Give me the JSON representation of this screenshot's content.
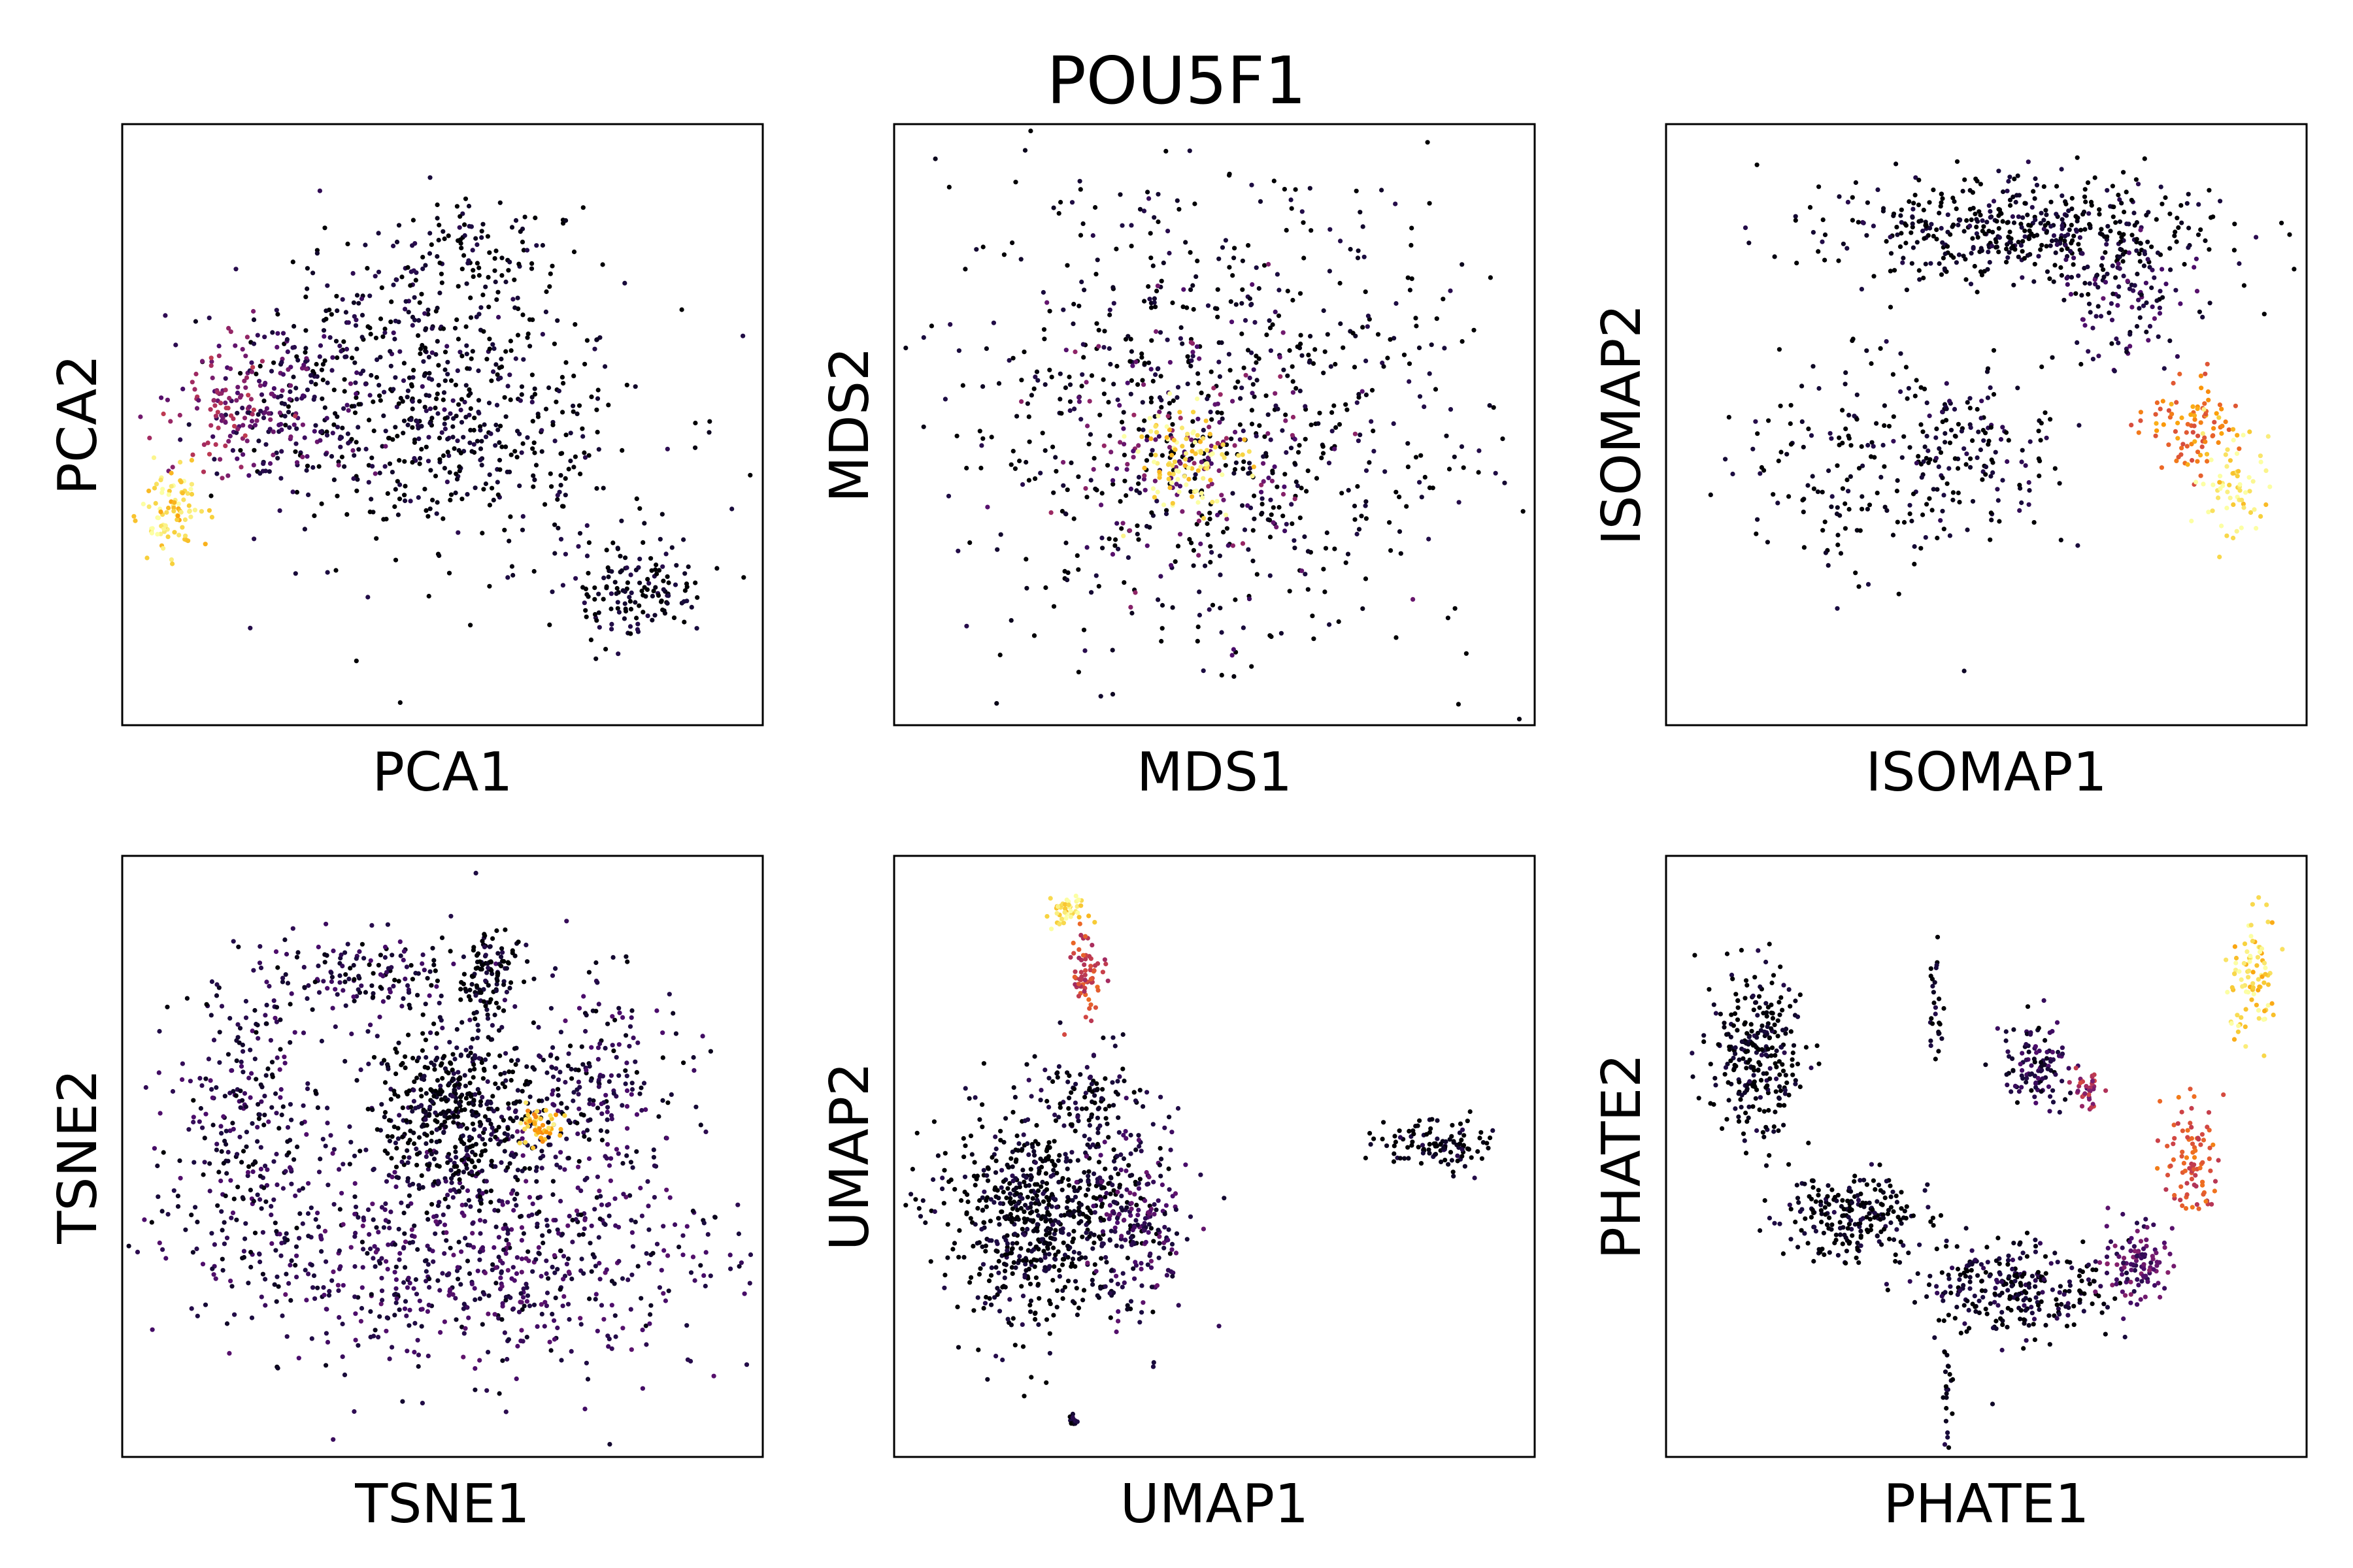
{
  "figure": {
    "title": "POU5F1",
    "colormap": [
      "#000004",
      "#1b0c41",
      "#4a0c6b",
      "#781c6d",
      "#a52c60",
      "#cf4446",
      "#ed6925",
      "#fb9b06",
      "#f7d13d",
      "#fcffa4"
    ]
  },
  "chart_data": [
    {
      "type": "scatter",
      "xlabel": "PCA1",
      "ylabel": "PCA2",
      "grid": false,
      "ticks": false,
      "clusters": [
        {
          "cx": 0.52,
          "cy": 0.48,
          "rx": 0.3,
          "ry": 0.22,
          "n": 900,
          "level": 0.03
        },
        {
          "cx": 0.4,
          "cy": 0.64,
          "rx": 0.2,
          "ry": 0.18,
          "n": 350,
          "level": 0.06
        },
        {
          "cx": 0.24,
          "cy": 0.53,
          "rx": 0.15,
          "ry": 0.14,
          "n": 300,
          "level": 0.22
        },
        {
          "cx": 0.16,
          "cy": 0.53,
          "rx": 0.08,
          "ry": 0.1,
          "n": 150,
          "level": 0.4
        },
        {
          "cx": 0.08,
          "cy": 0.35,
          "rx": 0.05,
          "ry": 0.07,
          "n": 160,
          "level": 0.92
        },
        {
          "cx": 0.8,
          "cy": 0.22,
          "rx": 0.1,
          "ry": 0.09,
          "n": 260,
          "level": 0.02
        },
        {
          "cx": 0.55,
          "cy": 0.78,
          "rx": 0.14,
          "ry": 0.1,
          "n": 180,
          "level": 0.01
        }
      ]
    },
    {
      "type": "scatter",
      "xlabel": "MDS1",
      "ylabel": "MDS2",
      "grid": false,
      "ticks": false,
      "clusters": [
        {
          "cx": 0.5,
          "cy": 0.52,
          "rx": 0.42,
          "ry": 0.4,
          "n": 1400,
          "level": 0.02
        },
        {
          "cx": 0.46,
          "cy": 0.46,
          "rx": 0.22,
          "ry": 0.22,
          "n": 300,
          "level": 0.3
        },
        {
          "cx": 0.46,
          "cy": 0.44,
          "rx": 0.09,
          "ry": 0.09,
          "n": 200,
          "level": 0.95
        }
      ]
    },
    {
      "type": "scatter",
      "xlabel": "ISOMAP1",
      "ylabel": "ISOMAP2",
      "grid": false,
      "ticks": false,
      "clusters": [
        {
          "cx": 0.55,
          "cy": 0.82,
          "rx": 0.3,
          "ry": 0.09,
          "n": 900,
          "level": 0.03
        },
        {
          "cx": 0.72,
          "cy": 0.7,
          "rx": 0.12,
          "ry": 0.1,
          "n": 200,
          "level": 0.15
        },
        {
          "cx": 0.3,
          "cy": 0.45,
          "rx": 0.18,
          "ry": 0.2,
          "n": 300,
          "level": 0.01
        },
        {
          "cx": 0.5,
          "cy": 0.45,
          "rx": 0.12,
          "ry": 0.15,
          "n": 250,
          "level": 0.05
        },
        {
          "cx": 0.82,
          "cy": 0.5,
          "rx": 0.08,
          "ry": 0.08,
          "n": 160,
          "level": 0.7
        },
        {
          "cx": 0.88,
          "cy": 0.4,
          "rx": 0.06,
          "ry": 0.08,
          "n": 120,
          "level": 0.95
        }
      ]
    },
    {
      "type": "scatter",
      "xlabel": "TSNE1",
      "ylabel": "TSNE2",
      "grid": false,
      "ticks": false,
      "clusters": [
        {
          "cx": 0.54,
          "cy": 0.33,
          "rx": 0.4,
          "ry": 0.2,
          "n": 1400,
          "level": 0.15
        },
        {
          "cx": 0.2,
          "cy": 0.55,
          "rx": 0.12,
          "ry": 0.25,
          "n": 500,
          "level": 0.12
        },
        {
          "cx": 0.74,
          "cy": 0.62,
          "rx": 0.12,
          "ry": 0.18,
          "n": 400,
          "level": 0.12
        },
        {
          "cx": 0.38,
          "cy": 0.8,
          "rx": 0.18,
          "ry": 0.08,
          "n": 300,
          "level": 0.1
        },
        {
          "cx": 0.52,
          "cy": 0.57,
          "rx": 0.12,
          "ry": 0.14,
          "n": 900,
          "level": 0.03
        },
        {
          "cx": 0.57,
          "cy": 0.8,
          "rx": 0.04,
          "ry": 0.07,
          "n": 200,
          "level": 0.02
        },
        {
          "cx": 0.65,
          "cy": 0.55,
          "rx": 0.04,
          "ry": 0.03,
          "n": 90,
          "level": 0.85
        }
      ]
    },
    {
      "type": "scatter",
      "xlabel": "UMAP1",
      "ylabel": "UMAP2",
      "grid": false,
      "ticks": false,
      "clusters": [
        {
          "cx": 0.23,
          "cy": 0.4,
          "rx": 0.16,
          "ry": 0.18,
          "n": 1300,
          "level": 0.02
        },
        {
          "cx": 0.38,
          "cy": 0.4,
          "rx": 0.08,
          "ry": 0.16,
          "n": 350,
          "level": 0.18
        },
        {
          "cx": 0.3,
          "cy": 0.6,
          "rx": 0.08,
          "ry": 0.06,
          "n": 150,
          "level": 0.05
        },
        {
          "cx": 0.3,
          "cy": 0.8,
          "rx": 0.03,
          "ry": 0.07,
          "n": 120,
          "level": 0.55
        },
        {
          "cx": 0.27,
          "cy": 0.91,
          "rx": 0.03,
          "ry": 0.03,
          "n": 80,
          "level": 0.95
        },
        {
          "cx": 0.84,
          "cy": 0.52,
          "rx": 0.09,
          "ry": 0.04,
          "n": 200,
          "level": 0.02
        },
        {
          "cx": 0.28,
          "cy": 0.06,
          "rx": 0.01,
          "ry": 0.01,
          "n": 20,
          "level": 0.02
        }
      ]
    },
    {
      "type": "scatter",
      "xlabel": "PHATE1",
      "ylabel": "PHATE2",
      "grid": false,
      "ticks": false,
      "clusters": [
        {
          "cx": 0.14,
          "cy": 0.66,
          "rx": 0.07,
          "ry": 0.14,
          "n": 500,
          "level": 0.02
        },
        {
          "cx": 0.3,
          "cy": 0.4,
          "rx": 0.12,
          "ry": 0.07,
          "n": 400,
          "level": 0.02
        },
        {
          "cx": 0.55,
          "cy": 0.28,
          "rx": 0.14,
          "ry": 0.08,
          "n": 500,
          "level": 0.05
        },
        {
          "cx": 0.73,
          "cy": 0.32,
          "rx": 0.06,
          "ry": 0.06,
          "n": 200,
          "level": 0.25
        },
        {
          "cx": 0.82,
          "cy": 0.5,
          "rx": 0.04,
          "ry": 0.1,
          "n": 160,
          "level": 0.6
        },
        {
          "cx": 0.92,
          "cy": 0.8,
          "rx": 0.04,
          "ry": 0.1,
          "n": 160,
          "level": 0.92
        },
        {
          "cx": 0.58,
          "cy": 0.65,
          "rx": 0.06,
          "ry": 0.08,
          "n": 200,
          "level": 0.12
        },
        {
          "cx": 0.66,
          "cy": 0.61,
          "rx": 0.02,
          "ry": 0.03,
          "n": 60,
          "level": 0.45
        },
        {
          "cx": 0.42,
          "cy": 0.75,
          "rx": 0.01,
          "ry": 0.1,
          "n": 50,
          "level": 0.01
        },
        {
          "cx": 0.44,
          "cy": 0.1,
          "rx": 0.01,
          "ry": 0.08,
          "n": 40,
          "level": 0.02
        }
      ]
    }
  ]
}
